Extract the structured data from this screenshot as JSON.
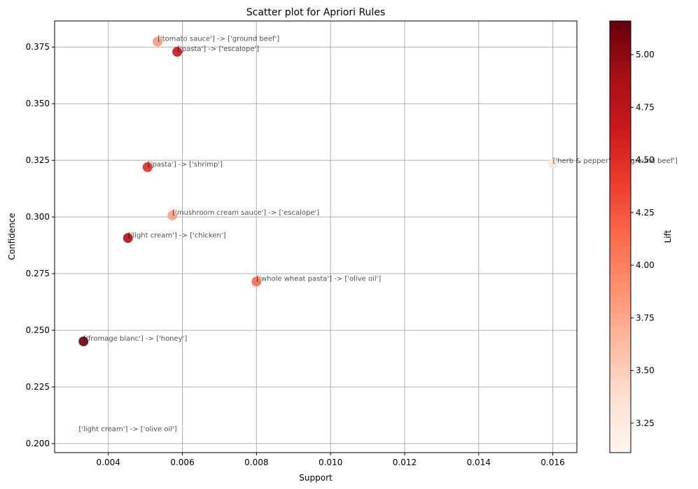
{
  "chart_data": {
    "type": "scatter",
    "title": "Scatter plot for Apriori Rules",
    "xlabel": "Support",
    "ylabel": "Confidence",
    "xlim": [
      0.00255,
      0.01665
    ],
    "ylim": [
      0.196,
      0.3865
    ],
    "xticks": [
      "0.004",
      "0.006",
      "0.008",
      "0.010",
      "0.012",
      "0.014",
      "0.016"
    ],
    "xtick_values": [
      0.004,
      0.006,
      0.008,
      0.01,
      0.012,
      0.014,
      0.016
    ],
    "yticks": [
      "0.200",
      "0.225",
      "0.250",
      "0.275",
      "0.300",
      "0.325",
      "0.350",
      "0.375"
    ],
    "ytick_values": [
      0.2,
      0.225,
      0.25,
      0.275,
      0.3,
      0.325,
      0.35,
      0.375
    ],
    "grid": true,
    "colorbar": {
      "label": "Lift",
      "colormap": "Reds",
      "range": [
        3.11,
        5.16
      ],
      "ticks": [
        "3.25",
        "3.50",
        "3.75",
        "4.00",
        "4.25",
        "4.50",
        "4.75",
        "5.00"
      ],
      "tick_values": [
        3.25,
        3.5,
        3.75,
        4.0,
        4.25,
        4.5,
        4.75,
        5.0
      ]
    },
    "points": [
      {
        "label": "['tomato sauce'] -> ['ground beef']",
        "x": 0.00533,
        "y": 0.3774,
        "lift": 3.84
      },
      {
        "label": "['pasta'] -> ['escalope']",
        "x": 0.00586,
        "y": 0.3729,
        "lift": 4.7
      },
      {
        "label": "['herb & pepper'] -> ['ground beef']",
        "x": 0.016,
        "y": 0.3235,
        "lift": 3.29
      },
      {
        "label": "['pasta'] -> ['shrimp']",
        "x": 0.00506,
        "y": 0.322,
        "lift": 4.51
      },
      {
        "label": "['mushroom cream sauce'] -> ['escalope']",
        "x": 0.00573,
        "y": 0.3007,
        "lift": 3.79
      },
      {
        "label": "['light cream'] -> ['chicken']",
        "x": 0.00453,
        "y": 0.2907,
        "lift": 4.84
      },
      {
        "label": "['whole wheat pasta'] -> ['olive oil']",
        "x": 0.008,
        "y": 0.2715,
        "lift": 4.12
      },
      {
        "label": "['fromage blanc'] -> ['honey']",
        "x": 0.00333,
        "y": 0.2451,
        "lift": 5.16
      },
      {
        "label": "['light cream'] -> ['olive oil']",
        "x": 0.0032,
        "y": 0.2051,
        "lift": 3.11
      }
    ]
  }
}
